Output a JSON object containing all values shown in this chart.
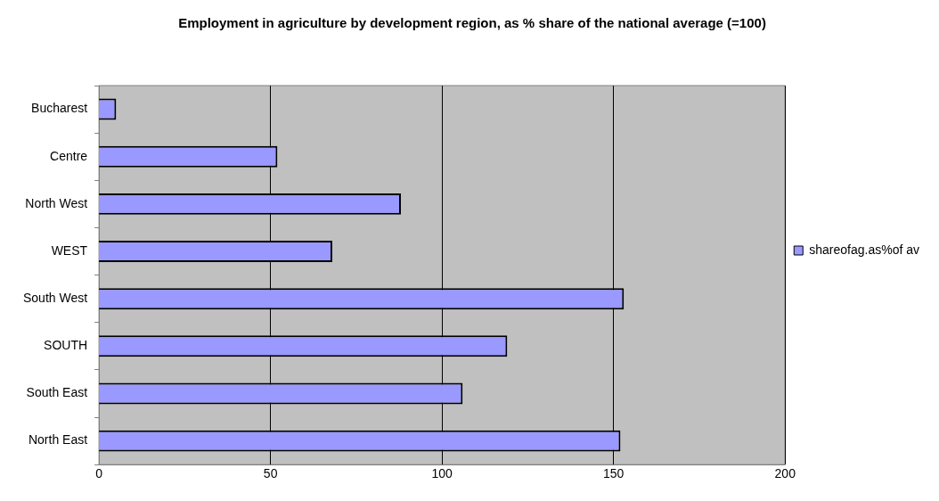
{
  "chart_data": {
    "type": "bar",
    "orientation": "horizontal",
    "title": "Employment in agriculture by development region, as % share of the national average (=100)",
    "categories": [
      "Bucharest",
      "Centre",
      "North West",
      "WEST",
      "South West",
      "SOUTH",
      "South East",
      "North East"
    ],
    "series": [
      {
        "name": "shareofag.as%of av",
        "color": "#9999ff",
        "values": [
          5,
          52,
          88,
          68,
          153,
          119,
          106,
          152
        ]
      }
    ],
    "xlim": [
      0,
      200
    ],
    "xticks": [
      0,
      50,
      100,
      150,
      200
    ],
    "grid": "x",
    "legend": "right"
  }
}
